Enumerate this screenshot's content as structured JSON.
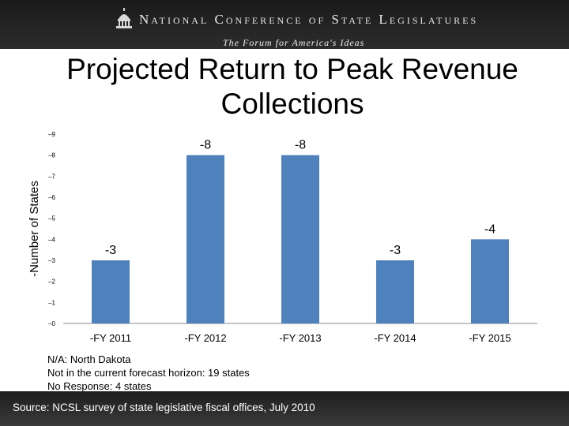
{
  "header": {
    "org_name": "National Conference of State Legislatures",
    "tagline": "The Forum for America's Ideas",
    "logo_icon": "capitol-dome-icon"
  },
  "slide": {
    "title": "Projected Return to Peak Revenue Collections",
    "notes": [
      "N/A: North Dakota",
      "Not in the current forecast horizon: 19 states",
      "No Response: 4 states"
    ],
    "source": "Source: NCSL survey of state legislative fiscal offices, July 2010"
  },
  "colors": {
    "bar": "#4f81bd",
    "banner": "#222222"
  },
  "chart_data": {
    "type": "bar",
    "categories": [
      "-FY 2011",
      "-FY 2012",
      "-FY 2013",
      "-FY 2014",
      "-FY 2015"
    ],
    "values": [
      3,
      8,
      8,
      3,
      4
    ],
    "data_labels": [
      "-3",
      "-8",
      "-8",
      "-3",
      "-4"
    ],
    "ylabel": "-Number of States",
    "ylim": [
      0,
      9
    ],
    "yticks": [
      "–0",
      "–1",
      "–2",
      "–3",
      "–4",
      "–5",
      "–6",
      "–7",
      "–8",
      "–9"
    ],
    "grid": false,
    "legend": "none"
  }
}
